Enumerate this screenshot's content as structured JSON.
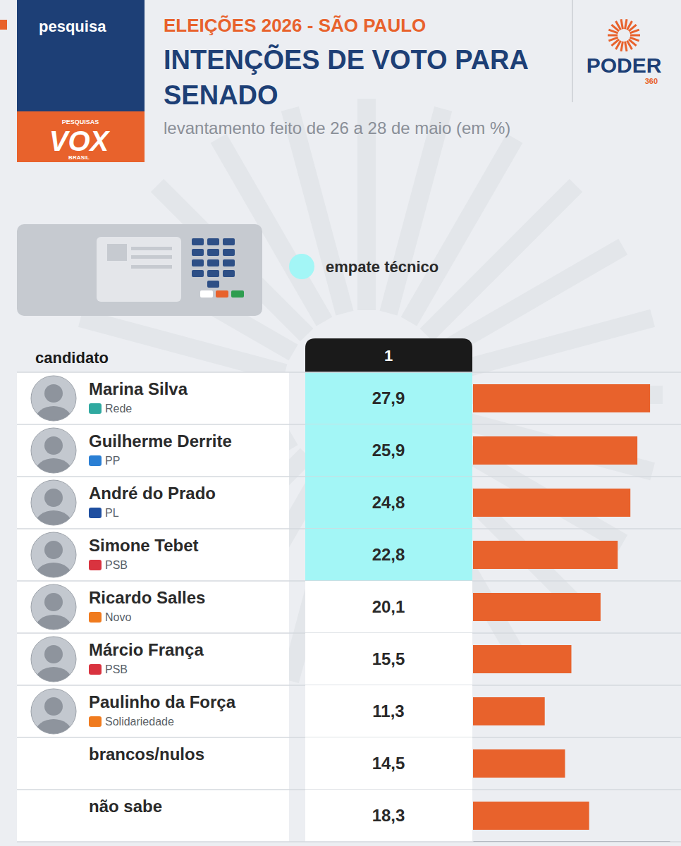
{
  "chart_data": {
    "type": "bar",
    "orientation": "horizontal",
    "tag": "pesquisa",
    "kicker": "ELEIÇÕES 2026 - SÃO PAULO",
    "title": "INTENÇÕES DE VOTO PARA SENADO",
    "subtitle": "levantamento feito de 26 a 28 de maio (em %)",
    "logos": {
      "pollster": [
        "PESQUISAS",
        "VOX",
        "BRASIL"
      ],
      "publisher": [
        "PODER",
        "360"
      ]
    },
    "category_header": "candidato",
    "categories": [
      "Marina Silva",
      "Guilherme Derrite",
      "André do Prado",
      "Simone Tebet",
      "Ricardo Salles",
      "Márcio França",
      "Paulinho da Força",
      "brancos/nulos",
      "não sabe"
    ],
    "parties": [
      "Rede",
      "PP",
      "PL",
      "PSB",
      "Novo",
      "PSB",
      "Solidariedade",
      null,
      null
    ],
    "series": [
      {
        "name": "1",
        "color": "#e8622c",
        "values": [
          27.9,
          25.9,
          24.8,
          22.8,
          20.1,
          15.5,
          11.3,
          14.5,
          18.3
        ],
        "value_labels": [
          "27,9",
          "25,9",
          "24,8",
          "22,8",
          "20,1",
          "15,5",
          "11,3",
          "14,5",
          "18,3"
        ]
      }
    ],
    "empate_tecnico": {
      "label": "empate técnico",
      "members": [
        true,
        true,
        true,
        true,
        false,
        false,
        false,
        false,
        false
      ]
    },
    "xlim": [
      0,
      31
    ],
    "tick_labels": false,
    "data_labels": true
  }
}
